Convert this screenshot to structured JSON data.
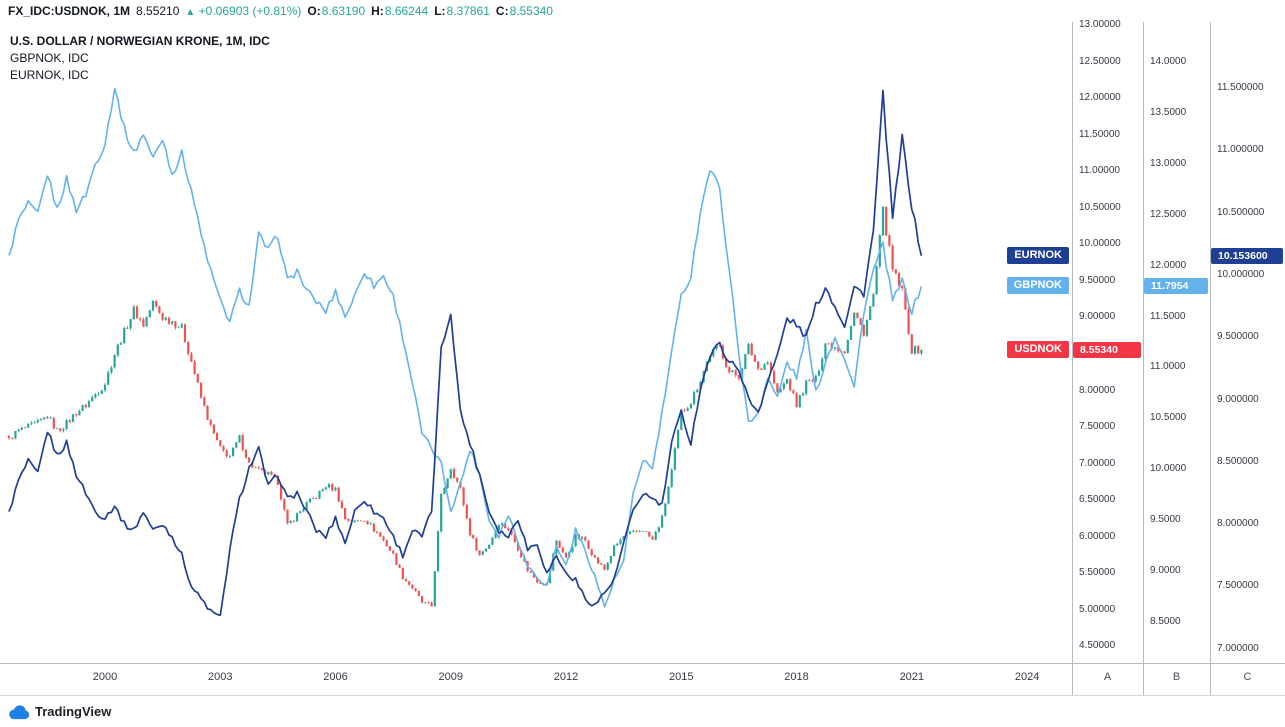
{
  "topbar": {
    "symbol": "FX_IDC:USDNOK, 1M",
    "last": "8.55210",
    "arrow": "▲",
    "change": "+0.06903 (+0.81%)",
    "open_label": "O:",
    "open": "8.63190",
    "high_label": "H:",
    "high": "8.66244",
    "low_label": "L:",
    "low": "8.37861",
    "close_label": "C:",
    "close": "8.55340"
  },
  "legend": {
    "main": "U.S. DOLLAR / NORWEGIAN KRONE, 1M, IDC",
    "gbpnok": "GBPNOK, IDC",
    "eurnok": "EURNOK, IDC"
  },
  "price_labels": [
    {
      "name": "EURNOK",
      "value": "10.153600",
      "num": 10.1536,
      "scale": "C",
      "color": "#1e3f94"
    },
    {
      "name": "GBPNOK",
      "value": "11.7954",
      "num": 11.7954,
      "scale": "B",
      "color": "#64b2ec"
    },
    {
      "name": "USDNOK",
      "value": "8.55340",
      "num": 8.5534,
      "scale": "A",
      "color": "#f23645"
    }
  ],
  "footer": {
    "brand": "TradingView"
  },
  "chart_data": {
    "type": "candlestick+line",
    "title": "U.S. DOLLAR / NORWEGIAN KRONE, 1M, IDC with GBPNOK and EURNOK overlays",
    "x_start": 1997.5,
    "x_step_years": 0.25,
    "x_ticks": [
      2000,
      2003,
      2006,
      2009,
      2012,
      2015,
      2018,
      2021,
      2024
    ],
    "grid": false,
    "legend_position": "top-left",
    "scales": {
      "A": {
        "name": "USDNOK price scale",
        "letter": "A",
        "ylim": [
          4.5,
          13.0
        ],
        "tick_labels": [
          "13.00000",
          "12.50000",
          "12.00000",
          "11.50000",
          "11.00000",
          "10.50000",
          "10.00000",
          "9.50000",
          "9.00000",
          "8.50000",
          "8.00000",
          "7.50000",
          "7.00000",
          "6.50000",
          "6.00000",
          "5.50000",
          "5.00000",
          "4.50000"
        ]
      },
      "B": {
        "name": "GBPNOK price scale",
        "letter": "B",
        "ylim": [
          8.5,
          14.0
        ],
        "tick_labels": [
          "14.0000",
          "13.5000",
          "13.0000",
          "12.5000",
          "12.0000",
          "11.5000",
          "11.0000",
          "10.5000",
          "10.0000",
          "9.5000",
          "9.0000",
          "8.5000"
        ]
      },
      "C": {
        "name": "EURNOK price scale",
        "letter": "C",
        "ylim": [
          7.0,
          11.5
        ],
        "tick_labels": [
          "11.500000",
          "11.000000",
          "10.500000",
          "10.000000",
          "9.500000",
          "9.000000",
          "8.500000",
          "8.000000",
          "7.500000",
          "7.000000"
        ]
      }
    },
    "series": [
      {
        "name": "USDNOK",
        "style": "candlestick",
        "scale": "A",
        "up_color": "#26a69a",
        "down_color": "#ef5350",
        "last": 8.5534,
        "values": [
          7.35,
          7.45,
          7.5,
          7.55,
          7.65,
          7.45,
          7.55,
          7.7,
          7.8,
          7.95,
          8.1,
          8.5,
          8.8,
          9.1,
          8.9,
          9.2,
          9.0,
          8.95,
          8.85,
          8.4,
          7.9,
          7.5,
          7.2,
          7.1,
          7.35,
          7.0,
          6.9,
          6.85,
          6.75,
          6.15,
          6.3,
          6.45,
          6.55,
          6.7,
          6.65,
          6.25,
          6.2,
          6.25,
          6.1,
          5.95,
          5.75,
          5.45,
          5.3,
          5.1,
          5.05,
          6.55,
          6.95,
          6.65,
          6.05,
          5.75,
          5.9,
          6.2,
          6.1,
          5.85,
          5.55,
          5.4,
          5.35,
          5.95,
          5.7,
          6.0,
          5.95,
          5.7,
          5.55,
          5.85,
          6.0,
          6.05,
          6.1,
          5.95,
          6.25,
          6.9,
          7.7,
          7.85,
          8.15,
          8.5,
          8.6,
          8.25,
          8.2,
          8.6,
          8.3,
          8.4,
          7.95,
          8.15,
          7.8,
          8.1,
          8.15,
          8.65,
          8.6,
          8.55,
          9.05,
          8.8,
          9.3,
          10.45,
          9.65,
          9.35,
          8.55,
          8.5534
        ]
      },
      {
        "name": "GBPNOK",
        "style": "line",
        "scale": "B",
        "color": "#64b2ec",
        "last": 11.7954,
        "values": [
          12.1,
          12.45,
          12.6,
          12.5,
          12.9,
          12.55,
          12.85,
          12.55,
          12.7,
          13.0,
          13.2,
          13.75,
          13.35,
          13.1,
          13.3,
          13.05,
          13.25,
          12.9,
          13.1,
          12.75,
          12.3,
          11.95,
          11.65,
          11.45,
          11.75,
          11.6,
          12.3,
          12.15,
          12.3,
          11.85,
          11.95,
          11.75,
          11.65,
          11.55,
          11.75,
          11.5,
          11.7,
          11.95,
          11.8,
          11.9,
          11.7,
          11.3,
          10.85,
          10.35,
          10.2,
          10.05,
          9.6,
          9.85,
          10.2,
          9.95,
          9.5,
          9.35,
          9.55,
          9.3,
          9.05,
          8.95,
          8.85,
          9.25,
          9.05,
          9.4,
          9.2,
          8.95,
          8.65,
          8.9,
          9.1,
          9.75,
          10.1,
          10.0,
          10.55,
          11.15,
          11.7,
          11.9,
          12.55,
          12.95,
          12.75,
          11.95,
          11.15,
          10.45,
          10.55,
          10.9,
          10.7,
          11.05,
          10.9,
          11.35,
          10.75,
          11.05,
          11.3,
          11.1,
          10.8,
          11.55,
          11.95,
          12.2,
          11.65,
          11.85,
          11.55,
          11.7954
        ]
      },
      {
        "name": "EURNOK",
        "style": "line",
        "scale": "C",
        "color": "#1e3f94",
        "last": 10.1536,
        "values": [
          8.1,
          8.35,
          8.5,
          8.4,
          8.75,
          8.55,
          8.65,
          8.4,
          8.25,
          8.1,
          8.05,
          8.15,
          8.0,
          7.95,
          8.1,
          7.95,
          8.0,
          7.9,
          7.75,
          7.5,
          7.4,
          7.3,
          7.25,
          7.8,
          8.2,
          8.45,
          8.6,
          8.3,
          8.4,
          8.2,
          8.25,
          8.1,
          7.95,
          7.9,
          8.05,
          7.85,
          8.1,
          8.2,
          8.1,
          8.05,
          7.9,
          7.75,
          7.95,
          7.9,
          8.1,
          9.4,
          9.7,
          8.9,
          8.65,
          8.4,
          8.1,
          7.95,
          7.9,
          8.05,
          7.8,
          7.85,
          7.6,
          7.75,
          7.6,
          7.55,
          7.4,
          7.35,
          7.45,
          7.55,
          7.85,
          8.1,
          8.25,
          8.2,
          8.15,
          8.65,
          8.9,
          8.65,
          9.1,
          9.35,
          9.45,
          9.3,
          9.25,
          9.0,
          8.9,
          9.15,
          9.35,
          9.65,
          9.6,
          9.5,
          9.75,
          9.9,
          9.75,
          9.6,
          9.9,
          9.85,
          10.35,
          11.45,
          10.45,
          11.1,
          10.55,
          10.1536
        ]
      }
    ]
  }
}
